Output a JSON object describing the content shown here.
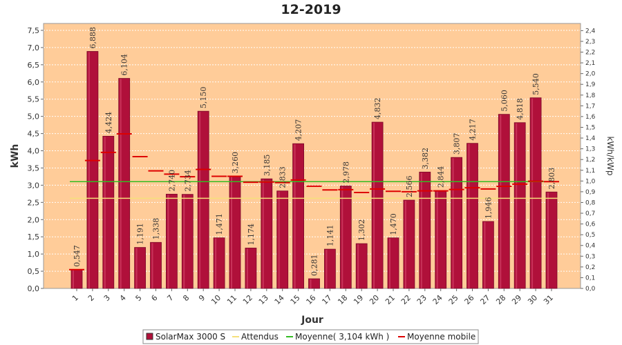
{
  "chart_data": {
    "type": "bar",
    "title": "12-2019",
    "xlabel": "Jour",
    "ylabel": "kWh",
    "y2label": "kWh/kWp",
    "ylim": [
      0,
      7.7
    ],
    "y2lim": [
      0,
      2.4667
    ],
    "yticks": [
      "0,0",
      "0,5",
      "1,0",
      "1,5",
      "2,0",
      "2,5",
      "3,0",
      "3,5",
      "4,0",
      "4,5",
      "5,0",
      "5,5",
      "6,0",
      "6,5",
      "7,0",
      "7,5"
    ],
    "y2ticks": [
      "0,0",
      "0,1",
      "0,2",
      "0,3",
      "0,4",
      "0,5",
      "0,6",
      "0,7",
      "0,8",
      "0,9",
      "1,0",
      "1,1",
      "1,2",
      "1,3",
      "1,4",
      "1,5",
      "1,6",
      "1,7",
      "1,8",
      "1,9",
      "2,0",
      "2,1",
      "2,2",
      "2,3",
      "2,4"
    ],
    "categories": [
      "1",
      "2",
      "3",
      "4",
      "5",
      "6",
      "7",
      "8",
      "9",
      "10",
      "11",
      "12",
      "13",
      "14",
      "15",
      "16",
      "17",
      "18",
      "19",
      "20",
      "21",
      "22",
      "23",
      "24",
      "25",
      "26",
      "27",
      "28",
      "29",
      "30",
      "31"
    ],
    "series": [
      {
        "name": "SolarMax 3000 S",
        "kind": "bar",
        "color": "#b0103a",
        "values": [
          0.547,
          6.888,
          4.424,
          6.104,
          1.191,
          1.338,
          2.74,
          2.734,
          5.15,
          1.471,
          3.26,
          1.174,
          3.185,
          2.833,
          4.207,
          0.281,
          1.141,
          2.978,
          1.302,
          4.832,
          1.47,
          2.566,
          3.382,
          2.844,
          3.807,
          4.217,
          1.946,
          5.06,
          4.818,
          5.54,
          2.803
        ],
        "labels": [
          "0,547",
          "6,888",
          "4,424",
          "6,104",
          "1,191",
          "1,338",
          "2,740",
          "2,734",
          "5,150",
          "1,471",
          "3,260",
          "1,174",
          "3,185",
          "2,833",
          "4,207",
          "0,281",
          "1,141",
          "2,978",
          "1,302",
          "4,832",
          "1,470",
          "2,566",
          "3,382",
          "2,844",
          "3,807",
          "4,217",
          "1,946",
          "5,060",
          "4,818",
          "5,540",
          "2,803"
        ]
      },
      {
        "name": "Attendus",
        "kind": "hline",
        "color": "#f5e07a",
        "value": 2.62
      },
      {
        "name": "Moyenne( 3,104 kWh )",
        "kind": "hline",
        "color": "#33bb22",
        "value": 3.104
      },
      {
        "name": "Moyenne mobile",
        "kind": "step",
        "color": "#dd0000",
        "values": [
          0.547,
          3.717,
          3.953,
          4.491,
          3.831,
          3.416,
          3.32,
          3.247,
          3.458,
          3.259,
          3.259,
          3.085,
          3.093,
          3.075,
          3.15,
          2.971,
          2.863,
          2.869,
          2.787,
          2.889,
          2.822,
          2.81,
          2.835,
          2.835,
          2.874,
          2.926,
          2.89,
          2.968,
          3.031,
          3.115,
          3.104
        ]
      }
    ],
    "legend_position": "bottom",
    "grid": true
  }
}
